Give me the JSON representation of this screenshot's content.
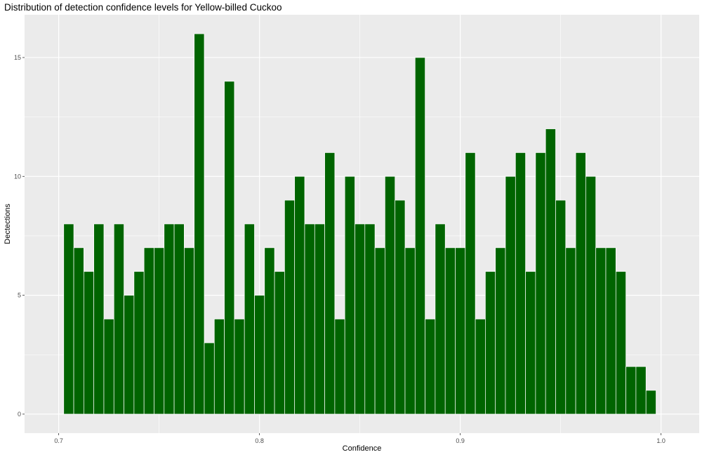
{
  "chart_data": {
    "type": "bar",
    "title": "Distribution of detection confidence levels for Yellow-billed Cuckoo",
    "xlabel": "Confidence",
    "ylabel": "Dectections",
    "xlim": [
      0.683,
      1.019
    ],
    "ylim": [
      -0.8,
      16.8
    ],
    "bin_width": 0.005,
    "x_ticks": [
      0.7,
      0.8,
      0.9,
      1.0
    ],
    "x_tick_labels": [
      "0.7",
      "0.8",
      "0.9",
      "1.0"
    ],
    "y_ticks": [
      0,
      5,
      10,
      15
    ],
    "y_tick_labels": [
      "0",
      "5",
      "10",
      "15"
    ],
    "grid": true,
    "legend": "none",
    "bar_color": "#006400",
    "panel_color": "#ebebeb",
    "x": [
      0.705,
      0.71,
      0.715,
      0.72,
      0.725,
      0.73,
      0.735,
      0.74,
      0.745,
      0.75,
      0.755,
      0.76,
      0.765,
      0.77,
      0.775,
      0.78,
      0.785,
      0.79,
      0.795,
      0.8,
      0.805,
      0.81,
      0.815,
      0.82,
      0.825,
      0.83,
      0.835,
      0.84,
      0.845,
      0.85,
      0.855,
      0.86,
      0.865,
      0.87,
      0.875,
      0.88,
      0.885,
      0.89,
      0.895,
      0.9,
      0.905,
      0.91,
      0.915,
      0.92,
      0.925,
      0.93,
      0.935,
      0.94,
      0.945,
      0.95,
      0.955,
      0.96,
      0.965,
      0.97,
      0.975,
      0.98,
      0.985,
      0.99,
      0.995
    ],
    "values": [
      8,
      7,
      6,
      8,
      4,
      8,
      5,
      6,
      7,
      7,
      8,
      8,
      7,
      16,
      3,
      4,
      14,
      4,
      8,
      5,
      7,
      6,
      9,
      10,
      8,
      8,
      11,
      4,
      10,
      8,
      8,
      7,
      10,
      9,
      7,
      15,
      4,
      8,
      7,
      7,
      11,
      4,
      6,
      7,
      10,
      11,
      6,
      11,
      12,
      9,
      7,
      11,
      10,
      7,
      7,
      6,
      2,
      2,
      1
    ]
  }
}
